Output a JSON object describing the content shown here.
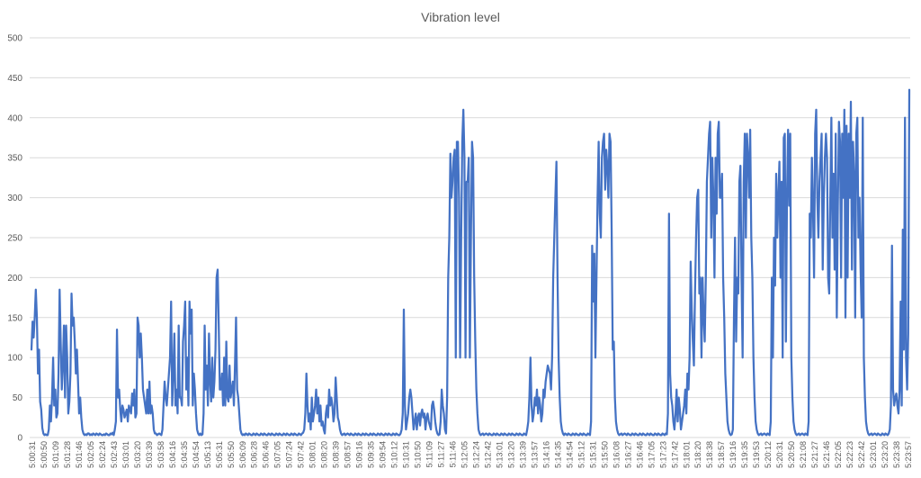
{
  "chart_data": {
    "type": "line",
    "title": "Vibration level",
    "xlabel": "",
    "ylabel": "",
    "ylim": [
      0,
      500
    ],
    "yticks": [
      0,
      50,
      100,
      150,
      200,
      250,
      300,
      350,
      400,
      450,
      500
    ],
    "grid": true,
    "legend": "none",
    "x_tick_labels": [
      "5:00:31",
      "5:00:50",
      "5:01:09",
      "5:01:28",
      "5:01:46",
      "5:02:05",
      "5:02:24",
      "5:02:43",
      "5:03:01",
      "5:03:20",
      "5:03:39",
      "5:03:58",
      "5:04:16",
      "5:04:35",
      "5:04:54",
      "5:05:13",
      "5:05:31",
      "5:05:50",
      "5:06:09",
      "5:06:28",
      "5:06:46",
      "5:07:05",
      "5:07:24",
      "5:07:42",
      "5:08:01",
      "5:08:20",
      "5:08:39",
      "5:08:57",
      "5:09:16",
      "5:09:35",
      "5:09:54",
      "5:10:12",
      "5:10:31",
      "5:10:50",
      "5:11:09",
      "5:11:27",
      "5:11:46",
      "5:12:05",
      "5:12:24",
      "5:12:42",
      "5:13:01",
      "5:13:20",
      "5:13:39",
      "5:13:57",
      "5:14:16",
      "5:14:35",
      "5:14:54",
      "5:15:12",
      "5:15:31",
      "5:15:50",
      "5:16:08",
      "5:16:27",
      "5:16:46",
      "5:17:05",
      "5:17:23",
      "5:17:42",
      "5:18:01",
      "5:18:20",
      "5:18:38",
      "5:18:57",
      "5:19:16",
      "5:19:35",
      "5:19:53",
      "5:20:12",
      "5:20:31",
      "5:20:50",
      "5:21:08",
      "5:21:27",
      "5:21:46",
      "5:22:05",
      "5:22:23",
      "5:22:42",
      "5:23:01",
      "5:23:20",
      "5:23:38",
      "5:23:57"
    ],
    "series": [
      {
        "color": "#4472c4",
        "values": [
          110,
          145,
          125,
          150,
          185,
          150,
          80,
          110,
          45,
          35,
          12,
          5,
          3,
          4,
          3,
          3,
          10,
          40,
          20,
          50,
          100,
          40,
          60,
          25,
          30,
          80,
          185,
          120,
          60,
          90,
          140,
          50,
          140,
          100,
          30,
          45,
          80,
          180,
          140,
          150,
          120,
          80,
          110,
          70,
          30,
          50,
          25,
          10,
          5,
          3,
          4,
          3,
          5,
          5,
          3,
          4,
          3,
          5,
          4,
          3,
          5,
          4,
          3,
          5,
          4,
          3,
          3,
          4,
          3,
          5,
          4,
          3,
          3,
          5,
          4,
          6,
          3,
          10,
          20,
          135,
          50,
          60,
          35,
          20,
          40,
          35,
          25,
          30,
          35,
          20,
          40,
          35,
          30,
          55,
          40,
          60,
          25,
          30,
          150,
          140,
          100,
          130,
          100,
          60,
          50,
          40,
          30,
          60,
          30,
          70,
          30,
          40,
          30,
          10,
          5,
          5,
          3,
          4,
          5,
          4,
          3,
          10,
          40,
          70,
          50,
          40,
          60,
          80,
          100,
          170,
          40,
          80,
          130,
          40,
          60,
          30,
          140,
          50,
          50,
          40,
          120,
          140,
          170,
          60,
          100,
          40,
          170,
          130,
          160,
          40,
          80,
          60,
          30,
          10,
          5,
          3,
          5,
          3,
          4,
          30,
          140,
          60,
          90,
          40,
          130,
          70,
          45,
          100,
          50,
          70,
          110,
          200,
          210,
          140,
          60,
          60,
          80,
          40,
          100,
          40,
          120,
          50,
          45,
          90,
          50,
          60,
          70,
          40,
          90,
          150,
          60,
          50,
          30,
          10,
          5,
          3,
          4,
          3,
          5,
          4,
          3,
          5,
          4,
          3,
          3,
          5,
          4,
          3,
          5,
          4,
          3,
          3,
          5,
          4,
          3,
          5,
          4,
          3,
          3,
          5,
          4,
          3,
          5,
          4,
          3,
          3,
          5,
          4,
          3,
          5,
          4,
          3,
          3,
          5,
          4,
          3,
          5,
          4,
          3,
          3,
          5,
          4,
          3,
          5,
          4,
          3,
          3,
          5,
          4,
          3,
          5,
          6,
          10,
          30,
          80,
          40,
          20,
          30,
          10,
          50,
          20,
          30,
          40,
          60,
          30,
          50,
          20,
          40,
          15,
          20,
          10,
          5,
          30,
          40,
          25,
          60,
          40,
          50,
          40,
          20,
          30,
          75,
          50,
          25,
          20,
          10,
          5,
          3,
          4,
          5,
          3,
          4,
          5,
          4,
          3,
          5,
          4,
          3,
          3,
          5,
          4,
          3,
          5,
          4,
          3,
          3,
          5,
          4,
          3,
          5,
          4,
          3,
          3,
          5,
          4,
          3,
          5,
          4,
          3,
          3,
          5,
          4,
          3,
          5,
          4,
          3,
          3,
          5,
          4,
          3,
          5,
          4,
          3,
          3,
          5,
          4,
          3,
          5,
          4,
          3,
          3,
          5,
          10,
          30,
          160,
          40,
          10,
          20,
          30,
          50,
          60,
          50,
          30,
          10,
          20,
          30,
          10,
          25,
          30,
          15,
          30,
          35,
          25,
          30,
          10,
          25,
          30,
          20,
          15,
          10,
          40,
          45,
          35,
          20,
          10,
          5,
          3,
          4,
          20,
          60,
          40,
          30,
          10,
          5,
          50,
          200,
          250,
          355,
          300,
          320,
          350,
          360,
          100,
          370,
          370,
          300,
          100,
          250,
          370,
          410,
          350,
          100,
          320,
          320,
          350,
          100,
          250,
          370,
          350,
          200,
          120,
          60,
          30,
          10,
          5,
          3,
          4,
          5,
          3,
          4,
          5,
          4,
          3,
          5,
          4,
          3,
          3,
          5,
          4,
          3,
          5,
          4,
          3,
          3,
          5,
          4,
          3,
          5,
          4,
          3,
          3,
          5,
          4,
          3,
          5,
          4,
          3,
          3,
          5,
          4,
          3,
          5,
          4,
          3,
          3,
          5,
          4,
          3,
          10,
          20,
          50,
          100,
          40,
          20,
          30,
          50,
          40,
          60,
          30,
          50,
          40,
          20,
          30,
          60,
          50,
          70,
          80,
          90,
          85,
          80,
          60,
          100,
          200,
          250,
          300,
          345,
          200,
          100,
          50,
          20,
          10,
          5,
          3,
          5,
          4,
          3,
          5,
          4,
          3,
          3,
          5,
          4,
          3,
          5,
          4,
          3,
          3,
          5,
          4,
          3,
          5,
          4,
          3,
          3,
          5,
          4,
          3,
          20,
          240,
          170,
          230,
          100,
          200,
          300,
          370,
          280,
          250,
          350,
          370,
          380,
          310,
          360,
          340,
          300,
          380,
          370,
          260,
          110,
          120,
          50,
          20,
          10,
          5,
          3,
          4,
          5,
          3,
          4,
          5,
          4,
          3,
          5,
          4,
          3,
          3,
          5,
          4,
          3,
          5,
          4,
          3,
          3,
          5,
          4,
          3,
          5,
          4,
          3,
          3,
          5,
          4,
          3,
          5,
          4,
          3,
          3,
          5,
          4,
          3,
          5,
          4,
          3,
          3,
          5,
          4,
          3,
          5,
          4,
          30,
          280,
          80,
          50,
          40,
          20,
          10,
          30,
          60,
          20,
          50,
          35,
          10,
          20,
          30,
          40,
          60,
          30,
          80,
          60,
          100,
          220,
          160,
          120,
          90,
          180,
          250,
          300,
          310,
          180,
          200,
          100,
          200,
          150,
          120,
          200,
          320,
          350,
          380,
          395,
          250,
          350,
          300,
          200,
          350,
          280,
          380,
          395,
          300,
          300,
          330,
          200,
          150,
          80,
          50,
          20,
          10,
          5,
          3,
          4,
          10,
          150,
          250,
          120,
          200,
          180,
          320,
          340,
          200,
          100,
          320,
          380,
          250,
          380,
          350,
          300,
          385,
          250,
          200,
          100,
          50,
          20,
          10,
          5,
          3,
          4,
          5,
          3,
          4,
          5,
          4,
          3,
          5,
          4,
          3,
          20,
          200,
          100,
          250,
          190,
          330,
          250,
          300,
          345,
          200,
          320,
          100,
          375,
          380,
          120,
          300,
          385,
          290,
          380,
          100,
          50,
          20,
          10,
          5,
          3,
          4,
          5,
          3,
          4,
          5,
          4,
          3,
          5,
          4,
          3,
          20,
          280,
          250,
          350,
          290,
          200,
          380,
          410,
          300,
          250,
          320,
          350,
          380,
          210,
          300,
          350,
          380,
          350,
          200,
          180,
          300,
          400,
          250,
          330,
          210,
          380,
          150,
          290,
          395,
          370,
          200,
          380,
          300,
          410,
          150,
          390,
          200,
          380,
          300,
          420,
          210,
          370,
          330,
          150,
          380,
          400,
          250,
          300,
          210,
          150,
          400,
          100,
          50,
          20,
          10,
          5,
          3,
          4,
          5,
          3,
          4,
          5,
          4,
          3,
          5,
          4,
          3,
          3,
          5,
          4,
          3,
          5,
          4,
          3,
          5,
          10,
          40,
          240,
          60,
          40,
          50,
          55,
          40,
          30,
          60,
          170,
          40,
          260,
          110,
          400,
          100,
          60,
          130,
          435
        ]
      }
    ]
  }
}
